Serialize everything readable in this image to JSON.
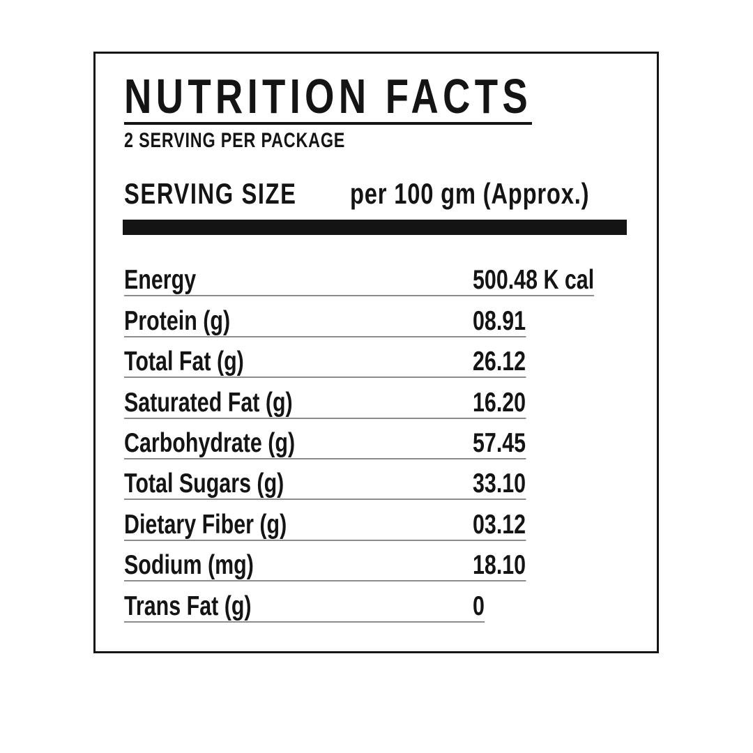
{
  "colors": {
    "ink": "#141414",
    "divider": "#8c8c8c",
    "paper": "#ffffff"
  },
  "header": {
    "title": "NUTRITION FACTS",
    "servings_note": "2 SERVING PER PACKAGE"
  },
  "serving_size": {
    "label": "SERVING SIZE",
    "value": "per 100 gm (Approx.)"
  },
  "rows": [
    {
      "label": "Energy",
      "value": "500.48 K cal"
    },
    {
      "label": "Protein (g)",
      "value": "08.91"
    },
    {
      "label": "Total Fat (g)",
      "value": "26.12"
    },
    {
      "label": "Saturated Fat (g)",
      "value": "16.20"
    },
    {
      "label": "Carbohydrate (g)",
      "value": "57.45"
    },
    {
      "label": "Total Sugars (g)",
      "value": "33.10"
    },
    {
      "label": "Dietary Fiber (g)",
      "value": "03.12"
    },
    {
      "label": "Sodium (mg)",
      "value": "18.10"
    },
    {
      "label": "Trans Fat (g)",
      "value": "0"
    }
  ]
}
